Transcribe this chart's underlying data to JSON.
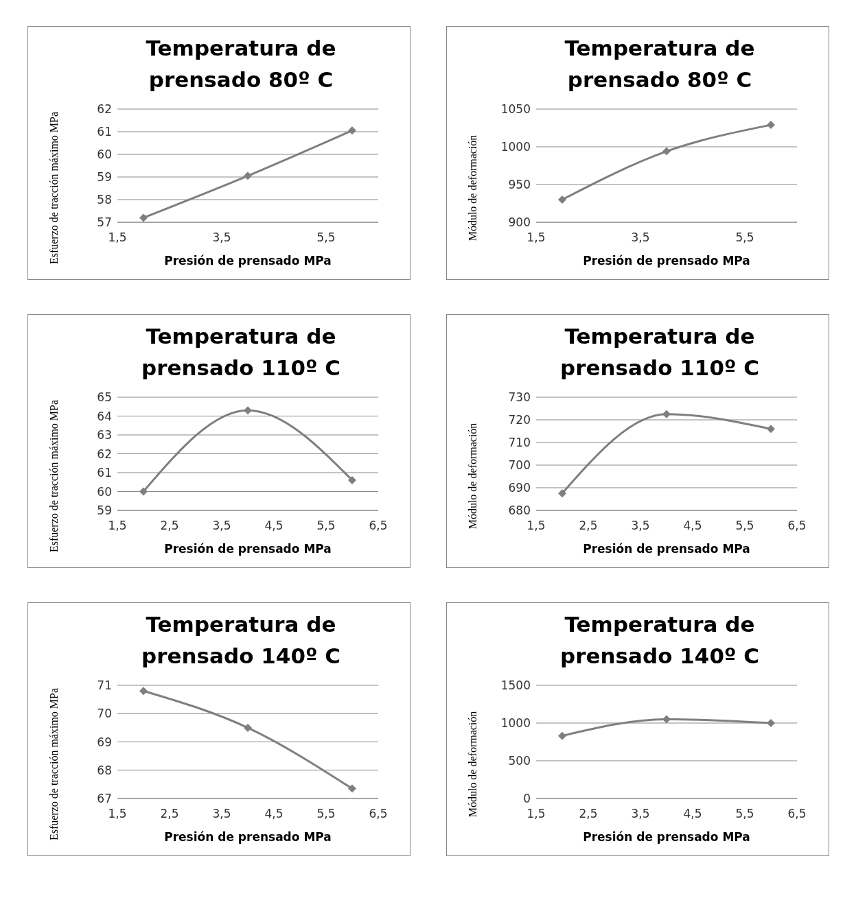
{
  "chart_data": [
    {
      "type": "line",
      "title": "Temperatura de prensado 80º C",
      "xlabel": "Presión de prensado MPa",
      "ylabel": "Esfuerzo de tracción máximo MPa",
      "x": [
        2,
        4,
        6
      ],
      "series": [
        {
          "color": "#7f7f7f",
          "values": [
            57.2,
            59.05,
            61.05
          ]
        }
      ],
      "xlim": [
        1.5,
        6.5
      ],
      "xticks": [
        {
          "value": 1.5,
          "label": "1,5"
        },
        {
          "value": 3.5,
          "label": "3,5"
        },
        {
          "value": 5.5,
          "label": "5,5"
        }
      ],
      "ylim": [
        57,
        62
      ],
      "yticks": [
        57,
        58,
        59,
        60,
        61,
        62
      ],
      "grid": "y",
      "marker": "diamond"
    },
    {
      "type": "line",
      "title": "Temperatura de prensado 80º C",
      "xlabel": "Presión de prensado MPa",
      "ylabel": "Módulo de deformación",
      "x": [
        2,
        4,
        6
      ],
      "series": [
        {
          "color": "#7f7f7f",
          "values": [
            930,
            994,
            1029
          ]
        }
      ],
      "xlim": [
        1.5,
        6.5
      ],
      "xticks": [
        {
          "value": 1.5,
          "label": "1,5"
        },
        {
          "value": 3.5,
          "label": "3,5"
        },
        {
          "value": 5.5,
          "label": "5,5"
        }
      ],
      "ylim": [
        900,
        1050
      ],
      "yticks": [
        900,
        950,
        1000,
        1050
      ],
      "grid": "y",
      "marker": "diamond"
    },
    {
      "type": "line",
      "title": "Temperatura de prensado 110º C",
      "xlabel": "Presión  de prensado MPa",
      "ylabel": "Esfuerzo de tracción máximo MPa",
      "x": [
        2,
        4,
        6
      ],
      "series": [
        {
          "color": "#7f7f7f",
          "values": [
            60,
            64.3,
            60.6
          ]
        }
      ],
      "xlim": [
        1.5,
        6.5
      ],
      "xticks": [
        {
          "value": 1.5,
          "label": "1,5"
        },
        {
          "value": 2.5,
          "label": "2,5"
        },
        {
          "value": 3.5,
          "label": "3,5"
        },
        {
          "value": 4.5,
          "label": "4,5"
        },
        {
          "value": 5.5,
          "label": "5,5"
        },
        {
          "value": 6.5,
          "label": "6,5"
        }
      ],
      "ylim": [
        59,
        65
      ],
      "yticks": [
        59,
        60,
        61,
        62,
        63,
        64,
        65
      ],
      "grid": "y",
      "marker": "diamond"
    },
    {
      "type": "line",
      "title": "Temperatura de prensado 110º C",
      "xlabel": "Presión de prensado MPa",
      "ylabel": "Módulo de deformación",
      "x": [
        2,
        4,
        6
      ],
      "series": [
        {
          "color": "#7f7f7f",
          "values": [
            687.5,
            722.5,
            716
          ]
        }
      ],
      "xlim": [
        1.5,
        6.5
      ],
      "xticks": [
        {
          "value": 1.5,
          "label": "1,5"
        },
        {
          "value": 2.5,
          "label": "2,5"
        },
        {
          "value": 3.5,
          "label": "3,5"
        },
        {
          "value": 4.5,
          "label": "4,5"
        },
        {
          "value": 5.5,
          "label": "5,5"
        },
        {
          "value": 6.5,
          "label": "6,5"
        }
      ],
      "ylim": [
        680,
        730
      ],
      "yticks": [
        680,
        690,
        700,
        710,
        720,
        730
      ],
      "grid": "y",
      "marker": "diamond"
    },
    {
      "type": "line",
      "title": "Temperatura de prensado 140º C",
      "xlabel": "Presión  de prensado MPa",
      "ylabel": "Esfuerzo de tracción máximo MPa",
      "x": [
        2,
        4,
        6
      ],
      "series": [
        {
          "color": "#7f7f7f",
          "values": [
            70.8,
            69.5,
            67.35
          ]
        }
      ],
      "xlim": [
        1.5,
        6.5
      ],
      "xticks": [
        {
          "value": 1.5,
          "label": "1,5"
        },
        {
          "value": 2.5,
          "label": "2,5"
        },
        {
          "value": 3.5,
          "label": "3,5"
        },
        {
          "value": 4.5,
          "label": "4,5"
        },
        {
          "value": 5.5,
          "label": "5,5"
        },
        {
          "value": 6.5,
          "label": "6,5"
        }
      ],
      "ylim": [
        67,
        71
      ],
      "yticks": [
        67,
        68,
        69,
        70,
        71
      ],
      "grid": "y",
      "marker": "diamond"
    },
    {
      "type": "line",
      "title": "Temperatura de prensado 140º C",
      "xlabel": "Presión de prensado MPa",
      "ylabel": "Módulo de deformación",
      "x": [
        2,
        4,
        6
      ],
      "series": [
        {
          "color": "#7f7f7f",
          "values": [
            830,
            1050,
            1000
          ]
        }
      ],
      "xlim": [
        1.5,
        6.5
      ],
      "xticks": [
        {
          "value": 1.5,
          "label": "1,5"
        },
        {
          "value": 2.5,
          "label": "2,5"
        },
        {
          "value": 3.5,
          "label": "3,5"
        },
        {
          "value": 4.5,
          "label": "4,5"
        },
        {
          "value": 5.5,
          "label": "5,5"
        },
        {
          "value": 6.5,
          "label": "6,5"
        }
      ],
      "ylim": [
        0,
        1500
      ],
      "yticks": [
        0,
        500,
        1000,
        1500
      ],
      "grid": "y",
      "marker": "diamond"
    }
  ]
}
